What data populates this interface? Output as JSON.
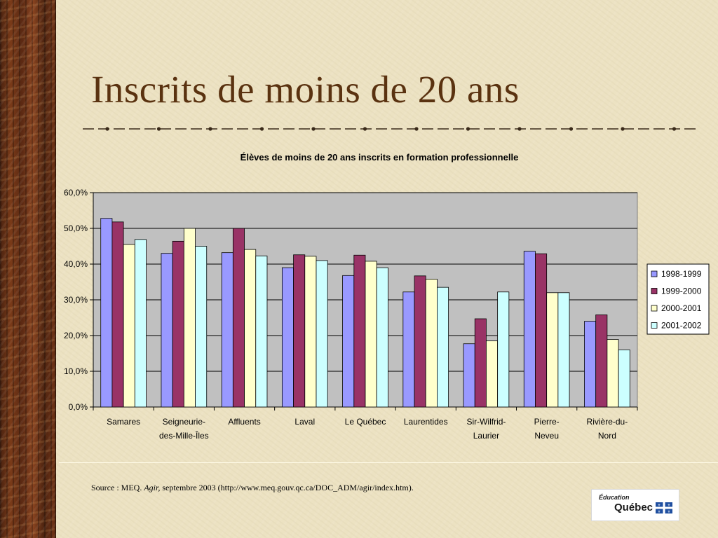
{
  "slide": {
    "title": "Inscrits de moins de 20 ans",
    "source_prefix": "Source : MEQ. ",
    "source_italic": "Agir,",
    "source_suffix": " septembre 2003 (http://www.meq.gouv.qc.ca/DOC_ADM/agir/index.htm).",
    "logo_small": "Éducation",
    "logo_big": "Québec"
  },
  "colors": {
    "plot_bg": "#c0c0c0",
    "title": "#5a3210"
  },
  "chart_data": {
    "type": "bar",
    "title": "Élèves de moins de 20 ans inscrits en formation professionnelle",
    "categories": [
      [
        "Samares"
      ],
      [
        "Seigneurie-",
        "des-Mille-Îles"
      ],
      [
        "Affluents"
      ],
      [
        "Laval"
      ],
      [
        "Le Québec"
      ],
      [
        "Laurentides"
      ],
      [
        "Sir-Wilfrid-",
        "Laurier"
      ],
      [
        "Pierre-",
        "Neveu"
      ],
      [
        "Rivière-du-",
        "Nord"
      ]
    ],
    "series": [
      {
        "name": "1998-1999",
        "color": "#9999ff",
        "values": [
          52.8,
          43.0,
          43.2,
          39.0,
          36.8,
          32.2,
          17.7,
          43.6,
          24.0
        ]
      },
      {
        "name": "1999-2000",
        "color": "#993366",
        "values": [
          51.8,
          46.4,
          50.0,
          42.6,
          42.5,
          36.7,
          24.7,
          42.9,
          25.8
        ]
      },
      {
        "name": "2000-2001",
        "color": "#ffffcc",
        "values": [
          45.5,
          50.0,
          44.1,
          42.2,
          40.8,
          35.8,
          18.5,
          32.0,
          18.9
        ]
      },
      {
        "name": "2001-2002",
        "color": "#ccffff",
        "values": [
          46.9,
          45.0,
          42.3,
          41.0,
          39.0,
          33.5,
          32.2,
          32.0,
          16.0
        ]
      }
    ],
    "ylim": [
      0,
      60
    ],
    "yticks": [
      "0,0%",
      "10,0%",
      "20,0%",
      "30,0%",
      "40,0%",
      "50,0%",
      "60,0%"
    ],
    "ystep": 10,
    "grid": true,
    "legend_position": "right"
  }
}
